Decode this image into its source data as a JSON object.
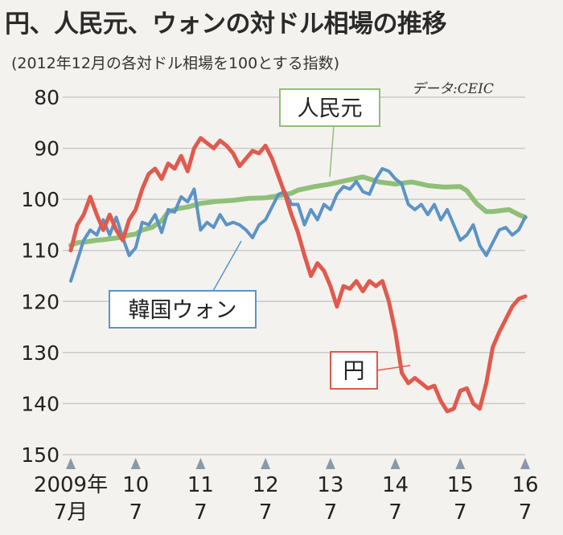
{
  "header": {
    "title": "円、人民元、ウォンの対ドル相場の推移",
    "subtitle": "(2012年12月の各対ドル相場を100とする指数)",
    "source": "データ:CEIC"
  },
  "chart_data": {
    "type": "line",
    "title": "円、人民元、ウォンの対ドル相場の推移",
    "subtitle": "(2012年12月の各対ドル相場を100とする指数)",
    "ylim": [
      80,
      150
    ],
    "y_inverted": true,
    "yticks": [
      80,
      90,
      100,
      110,
      120,
      130,
      140,
      150
    ],
    "grid": true,
    "xlim": [
      2009.5,
      2016.5
    ],
    "xticks": [
      {
        "x": 2009.5,
        "top": "2009年",
        "bottom": "7月"
      },
      {
        "x": 2010.5,
        "top": "10",
        "bottom": "7"
      },
      {
        "x": 2011.5,
        "top": "11",
        "bottom": "7"
      },
      {
        "x": 2012.5,
        "top": "12",
        "bottom": "7"
      },
      {
        "x": 2013.5,
        "top": "13",
        "bottom": "7"
      },
      {
        "x": 2014.5,
        "top": "14",
        "bottom": "7"
      },
      {
        "x": 2015.5,
        "top": "15",
        "bottom": "7"
      },
      {
        "x": 2016.5,
        "top": "16",
        "bottom": "7"
      }
    ],
    "series": [
      {
        "name": "人民元",
        "color": "#8fbf78",
        "x": [
          2009.5,
          2009.6,
          2009.75,
          2009.9,
          2010.0,
          2010.25,
          2010.4,
          2010.5,
          2010.6,
          2010.75,
          2010.9,
          2011.0,
          2011.15,
          2011.3,
          2011.5,
          2011.75,
          2012.0,
          2012.25,
          2012.5,
          2012.6,
          2012.75,
          2012.9,
          2013.0,
          2013.25,
          2013.5,
          2013.75,
          2014.0,
          2014.1,
          2014.25,
          2014.5,
          2014.75,
          2014.9,
          2015.0,
          2015.25,
          2015.5,
          2015.6,
          2015.75,
          2015.9,
          2016.0,
          2016.25,
          2016.4,
          2016.5
        ],
        "values": [
          109,
          108.5,
          108.3,
          108,
          107.9,
          107.5,
          107,
          106.8,
          106,
          105.5,
          104.2,
          102.5,
          101.8,
          101.5,
          100.8,
          100.4,
          100.2,
          99.8,
          99.7,
          99.5,
          99.2,
          98.8,
          98.2,
          97.5,
          97,
          96.3,
          95.6,
          96,
          96.6,
          97,
          96.6,
          97,
          97.3,
          97.6,
          97.5,
          98.3,
          100.8,
          102.4,
          102.4,
          102,
          103,
          103.5
        ]
      },
      {
        "name": "韓国ウォン",
        "color": "#5b93c7",
        "x": [
          2009.5,
          2009.6,
          2009.7,
          2009.8,
          2009.9,
          2010.0,
          2010.1,
          2010.2,
          2010.3,
          2010.4,
          2010.5,
          2010.6,
          2010.7,
          2010.8,
          2010.9,
          2011.0,
          2011.1,
          2011.2,
          2011.3,
          2011.4,
          2011.5,
          2011.6,
          2011.7,
          2011.8,
          2011.9,
          2012.0,
          2012.1,
          2012.2,
          2012.3,
          2012.4,
          2012.5,
          2012.6,
          2012.7,
          2012.8,
          2012.9,
          2013.0,
          2013.1,
          2013.2,
          2013.3,
          2013.4,
          2013.5,
          2013.6,
          2013.7,
          2013.8,
          2013.9,
          2014.0,
          2014.1,
          2014.2,
          2014.3,
          2014.4,
          2014.5,
          2014.6,
          2014.7,
          2014.8,
          2014.9,
          2015.0,
          2015.1,
          2015.2,
          2015.3,
          2015.4,
          2015.5,
          2015.6,
          2015.7,
          2015.8,
          2015.9,
          2016.0,
          2016.1,
          2016.2,
          2016.3,
          2016.4,
          2016.5
        ],
        "values": [
          116,
          112,
          108,
          106,
          107,
          104,
          107,
          103.5,
          107.5,
          111,
          109.5,
          104.5,
          105,
          103,
          106.5,
          102,
          102.5,
          99.5,
          100.5,
          98,
          106,
          104.5,
          105.5,
          103,
          105,
          104.5,
          105,
          106,
          107.5,
          105,
          104,
          101.5,
          99,
          98.5,
          101,
          101,
          105,
          102,
          104,
          101,
          102,
          99,
          97.5,
          98,
          96.5,
          98.5,
          99,
          96,
          94,
          94.5,
          96,
          97,
          101,
          102,
          101,
          103,
          101,
          104,
          102,
          105,
          108,
          107,
          105,
          109,
          111,
          108.5,
          106,
          105.5,
          107,
          106,
          103.5
        ]
      },
      {
        "name": "円",
        "color": "#e05a4e",
        "x": [
          2009.5,
          2009.6,
          2009.7,
          2009.8,
          2009.9,
          2010.0,
          2010.1,
          2010.2,
          2010.3,
          2010.4,
          2010.5,
          2010.6,
          2010.7,
          2010.8,
          2010.9,
          2011.0,
          2011.1,
          2011.2,
          2011.3,
          2011.4,
          2011.5,
          2011.6,
          2011.7,
          2011.8,
          2011.9,
          2012.0,
          2012.1,
          2012.2,
          2012.3,
          2012.4,
          2012.5,
          2012.6,
          2012.7,
          2012.8,
          2012.9,
          2013.0,
          2013.1,
          2013.2,
          2013.3,
          2013.4,
          2013.5,
          2013.6,
          2013.7,
          2013.8,
          2013.9,
          2014.0,
          2014.1,
          2014.2,
          2014.3,
          2014.4,
          2014.5,
          2014.6,
          2014.7,
          2014.8,
          2014.9,
          2015.0,
          2015.1,
          2015.2,
          2015.3,
          2015.4,
          2015.5,
          2015.6,
          2015.7,
          2015.8,
          2015.9,
          2016.0,
          2016.1,
          2016.2,
          2016.3,
          2016.4,
          2016.5
        ],
        "values": [
          110,
          105,
          103,
          99.5,
          103,
          106,
          103,
          106,
          108,
          104,
          102,
          98,
          95,
          94,
          96,
          93,
          94,
          91.5,
          94.5,
          90,
          88,
          89,
          90,
          88.5,
          89.5,
          91,
          93.5,
          92,
          90.5,
          91,
          89.5,
          92,
          95.5,
          99,
          103,
          106.5,
          111,
          115,
          112.5,
          114,
          117,
          121,
          117,
          117.5,
          116,
          118,
          116,
          117,
          116,
          120,
          126,
          134,
          136,
          135,
          136,
          137,
          136.5,
          139.5,
          141.5,
          141,
          137.5,
          137,
          140,
          141,
          136,
          129,
          126,
          123.5,
          121,
          119.5,
          119
        ]
      }
    ],
    "annotations": [
      {
        "text": "人民元",
        "target": "人民元"
      },
      {
        "text": "韓国ウォン",
        "target": "韓国ウォン"
      },
      {
        "text": "円",
        "target": "円"
      }
    ]
  }
}
